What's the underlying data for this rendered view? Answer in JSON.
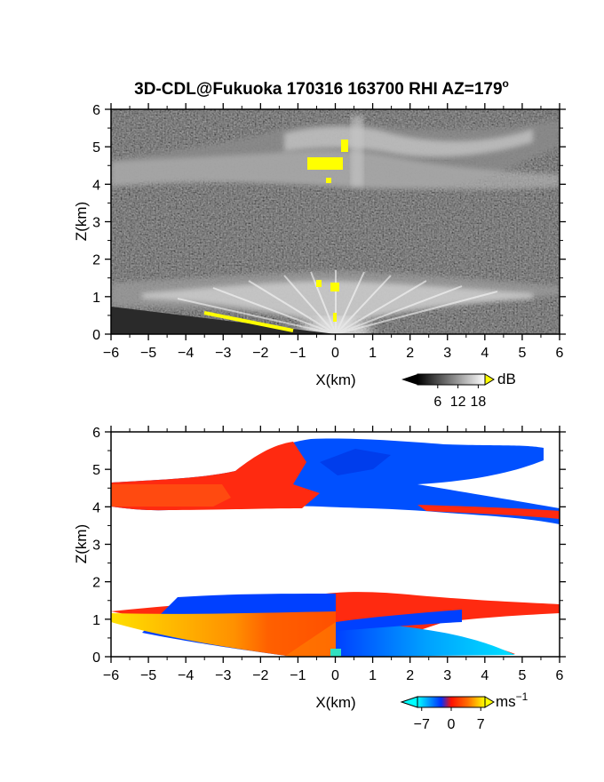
{
  "title": "3D-CDL@Fukuoka 170316 163700 RHI AZ=179",
  "title_suffix": "o",
  "chart_data": [
    {
      "type": "heatmap",
      "name": "backscatter-intensity",
      "xlabel": "X(km)",
      "ylabel": "Z(km)",
      "xlim": [
        -6,
        6
      ],
      "ylim": [
        0,
        6
      ],
      "x_ticks": [
        "-6",
        "-5",
        "-4",
        "-3",
        "-2",
        "-1",
        "0",
        "1",
        "2",
        "3",
        "4",
        "5",
        "6"
      ],
      "y_ticks": [
        "0",
        "1",
        "2",
        "3",
        "4",
        "5",
        "6"
      ],
      "colorbar": {
        "unit": "dB",
        "ticks": [
          "6",
          "12",
          "18"
        ],
        "range": [
          0,
          20
        ],
        "colors": [
          "#000000",
          "#ffffff"
        ],
        "overflow_color": "#ffff00"
      },
      "features": [
        {
          "kind": "cloud-layer",
          "z_range": [
            4.0,
            5.8
          ],
          "x_range": [
            -6,
            6
          ]
        },
        {
          "kind": "boundary-layer",
          "z_range": [
            0,
            1.5
          ],
          "x_range": [
            -6,
            6
          ]
        },
        {
          "kind": "saturation",
          "color": "#ffff00",
          "x": [
            -1.0,
            0.5
          ],
          "z": [
            4.3,
            4.7
          ]
        }
      ]
    },
    {
      "type": "heatmap",
      "name": "doppler-velocity",
      "xlabel": "X(km)",
      "ylabel": "Z(km)",
      "xlim": [
        -6,
        6
      ],
      "ylim": [
        0,
        6
      ],
      "x_ticks": [
        "-6",
        "-5",
        "-4",
        "-3",
        "-2",
        "-1",
        "0",
        "1",
        "2",
        "3",
        "4",
        "5",
        "6"
      ],
      "y_ticks": [
        "0",
        "1",
        "2",
        "3",
        "4",
        "5",
        "6"
      ],
      "colorbar": {
        "unit": "ms",
        "unit_exp": "−1",
        "ticks": [
          "−7",
          "0",
          "7"
        ],
        "range": [
          -8,
          8
        ],
        "colors": [
          "#00ffff",
          "#0040ff",
          "#ff2000",
          "#ffff00"
        ]
      },
      "features": [
        {
          "kind": "upper-layer",
          "z_range": [
            3.7,
            5.8
          ],
          "note_left": "red",
          "note_right": "blue"
        },
        {
          "kind": "lower-layer",
          "z_range": [
            0,
            1.6
          ],
          "note_left": "orange",
          "note_right": "blue"
        }
      ]
    }
  ]
}
